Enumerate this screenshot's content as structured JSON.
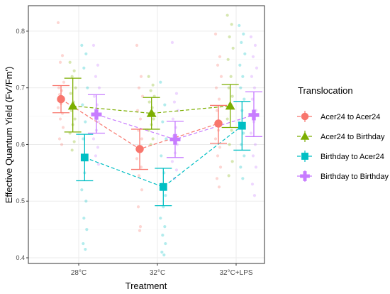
{
  "chart_data": {
    "type": "scatter",
    "xlabel": "Treatment",
    "ylabel": "Effective Quantum Yield (Fv'/Fm')",
    "categories": [
      "28°C",
      "32°C",
      "32°C+LPS"
    ],
    "ylim": [
      0.39,
      0.845
    ],
    "yticks": [
      0.4,
      0.5,
      0.6,
      0.7,
      0.8
    ],
    "grid": true,
    "legend": {
      "title": "Translocation",
      "placement": "right"
    },
    "series": [
      {
        "name": "Acer24 to Acer24",
        "color": "#F8766D",
        "marker": "circle",
        "offset": -0.225,
        "mean": [
          0.68,
          0.592,
          0.637
        ],
        "lower": [
          0.656,
          0.556,
          0.602
        ],
        "upper": [
          0.704,
          0.627,
          0.669
        ],
        "raw": [
          [
            0.815,
            0.757,
            0.745,
            0.71,
            0.7,
            0.695,
            0.688,
            0.68,
            0.672,
            0.665,
            0.655,
            0.645,
            0.63,
            0.61,
            0.6
          ],
          [
            0.775,
            0.72,
            0.7,
            0.685,
            0.66,
            0.645,
            0.625,
            0.61,
            0.59,
            0.575,
            0.56,
            0.545,
            0.52,
            0.49,
            0.455,
            0.448
          ],
          [
            0.795,
            0.755,
            0.74,
            0.72,
            0.7,
            0.68,
            0.66,
            0.64,
            0.625,
            0.61,
            0.595,
            0.58,
            0.56,
            0.54,
            0.525
          ]
        ]
      },
      {
        "name": "Acer24 to Birthday",
        "color": "#7CAE00",
        "marker": "triangle",
        "offset": -0.075,
        "mean": [
          0.668,
          0.655,
          0.668
        ],
        "lower": [
          0.622,
          0.627,
          0.63
        ],
        "upper": [
          0.717,
          0.683,
          0.706
        ],
        "raw": [
          [
            0.745,
            0.73,
            0.72,
            0.7,
            0.69,
            0.675,
            0.66,
            0.645,
            0.635,
            0.62,
            0.605,
            0.59
          ],
          [
            0.72,
            0.705,
            0.695,
            0.685,
            0.675,
            0.665,
            0.655,
            0.645,
            0.635,
            0.625,
            0.61,
            0.6
          ],
          [
            0.828,
            0.812,
            0.79,
            0.77,
            0.75,
            0.72,
            0.7,
            0.685,
            0.665,
            0.645,
            0.625,
            0.6,
            0.57,
            0.545
          ]
        ]
      },
      {
        "name": "Birthday to Acer24",
        "color": "#00BFC4",
        "marker": "square",
        "offset": 0.075,
        "mean": [
          0.577,
          0.525,
          0.633
        ],
        "lower": [
          0.536,
          0.492,
          0.59
        ],
        "upper": [
          0.618,
          0.558,
          0.676
        ],
        "raw": [
          [
            0.775,
            0.76,
            0.735,
            0.7,
            0.67,
            0.64,
            0.61,
            0.58,
            0.55,
            0.52,
            0.5,
            0.47,
            0.45,
            0.425,
            0.415
          ],
          [
            0.71,
            0.67,
            0.64,
            0.61,
            0.58,
            0.55,
            0.53,
            0.51,
            0.49,
            0.47,
            0.455,
            0.44,
            0.425,
            0.41,
            0.405
          ],
          [
            0.81,
            0.795,
            0.78,
            0.76,
            0.74,
            0.72,
            0.7,
            0.68,
            0.66,
            0.64,
            0.62,
            0.6,
            0.58,
            0.56,
            0.54
          ]
        ]
      },
      {
        "name": "Birthday to Birthday",
        "color": "#C77CFF",
        "marker": "plus",
        "offset": 0.225,
        "mean": [
          0.653,
          0.609,
          0.652
        ],
        "lower": [
          0.62,
          0.577,
          0.614
        ],
        "upper": [
          0.688,
          0.641,
          0.693
        ],
        "raw": [
          [
            0.775,
            0.74,
            0.72,
            0.7,
            0.685,
            0.67,
            0.655,
            0.64,
            0.625,
            0.61,
            0.595,
            0.58,
            0.565
          ],
          [
            0.78,
            0.69,
            0.675,
            0.66,
            0.645,
            0.63,
            0.615,
            0.6,
            0.585,
            0.57,
            0.555,
            0.54
          ],
          [
            0.79,
            0.775,
            0.755,
            0.735,
            0.72,
            0.7,
            0.68,
            0.66,
            0.64,
            0.62,
            0.6,
            0.58,
            0.56,
            0.53,
            0.51
          ]
        ]
      }
    ]
  }
}
